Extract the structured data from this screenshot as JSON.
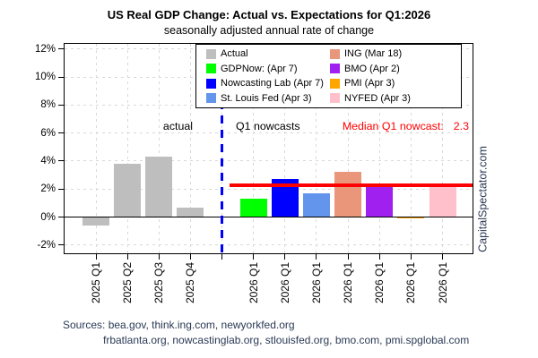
{
  "watermark": "CapitalSpectator.com",
  "sources": {
    "line1": "Sources: bea.gov, think.ing.com, newyorkfed.org",
    "line2": "frbatlanta.org, nowcastinglab.org, stlouisfed.org, bmo.com, pmi.spglobal.com"
  },
  "annotations": {
    "left_of_divider": "actual",
    "right_of_divider": "Q1 nowcasts",
    "median_label": "Median Q1 nowcast:",
    "median_value": "2.3"
  },
  "chart_data": {
    "type": "bar",
    "title": "US Real GDP Change: Actual vs. Expectations for Q1:2026",
    "subtitle": "seasonally adjusted annual rate of change",
    "xlabel": "",
    "ylabel": "",
    "ylim": [
      -2.7,
      12.4
    ],
    "ytick_values": [
      12,
      10,
      8,
      6,
      4,
      2,
      0,
      -2
    ],
    "ytick_labels": [
      "12%",
      "10%",
      "8%",
      "6%",
      "4%",
      "2%",
      "0%",
      "-2%"
    ],
    "grid": {
      "style": "dashed",
      "color": "#d8d8d8",
      "both_axes": true
    },
    "categories": [
      "2025 Q1",
      "2025 Q2",
      "2025 Q3",
      "2025 Q4",
      "",
      "2026 Q1",
      "2026 Q1",
      "2026 Q1",
      "2026 Q1",
      "2026 Q1",
      "2026 Q1",
      "2026 Q1"
    ],
    "bars": [
      {
        "slot": 0,
        "series": "Actual",
        "category": "2025 Q1",
        "value": -0.6,
        "color": "#BEBEBE"
      },
      {
        "slot": 1,
        "series": "Actual",
        "category": "2025 Q2",
        "value": 3.8,
        "color": "#BEBEBE"
      },
      {
        "slot": 2,
        "series": "Actual",
        "category": "2025 Q3",
        "value": 4.3,
        "color": "#BEBEBE"
      },
      {
        "slot": 3,
        "series": "Actual",
        "category": "2025 Q4",
        "value": 0.7,
        "color": "#BEBEBE"
      },
      {
        "slot": 5,
        "series": "GDPNow: (Apr 7)",
        "category": "2026 Q1",
        "value": 1.3,
        "color": "#00FF00"
      },
      {
        "slot": 6,
        "series": "Nowcasting Lab (Apr 7)",
        "category": "2026 Q1",
        "value": 2.7,
        "color": "#0000FF"
      },
      {
        "slot": 7,
        "series": "St. Louis Fed (Apr 3)",
        "category": "2026 Q1",
        "value": 1.7,
        "color": "#6495ED"
      },
      {
        "slot": 8,
        "series": "ING (Mar 18)",
        "category": "2026 Q1",
        "value": 3.2,
        "color": "#E9967A"
      },
      {
        "slot": 9,
        "series": "BMO (Apr 2)",
        "category": "2026 Q1",
        "value": 2.2,
        "color": "#A020F0"
      },
      {
        "slot": 10,
        "series": "PMI (Apr 3)",
        "category": "2026 Q1",
        "value": -0.1,
        "color": "#FFA500"
      },
      {
        "slot": 11,
        "series": "NYFED (Apr 3)",
        "category": "2026 Q1",
        "value": 2.4,
        "color": "#FFC0CB"
      }
    ],
    "median_line": {
      "value": 2.3,
      "color": "#FF0000"
    },
    "divider": {
      "slot": 4,
      "color": "#0000FF",
      "style": "dashed-vertical"
    },
    "legend": {
      "position": "top-inside",
      "columns": [
        [
          {
            "label": "Actual",
            "color": "#BEBEBE"
          },
          {
            "label": "GDPNow: (Apr 7)",
            "color": "#00FF00"
          },
          {
            "label": "Nowcasting Lab (Apr 7)",
            "color": "#0000FF"
          },
          {
            "label": "St. Louis Fed (Apr 3)",
            "color": "#6495ED"
          }
        ],
        [
          {
            "label": "ING (Mar 18)",
            "color": "#E9967A"
          },
          {
            "label": "BMO (Apr 2)",
            "color": "#A020F0"
          },
          {
            "label": "PMI (Apr 3)",
            "color": "#FFA500"
          },
          {
            "label": "NYFED (Apr 3)",
            "color": "#FFC0CB"
          }
        ]
      ]
    }
  }
}
